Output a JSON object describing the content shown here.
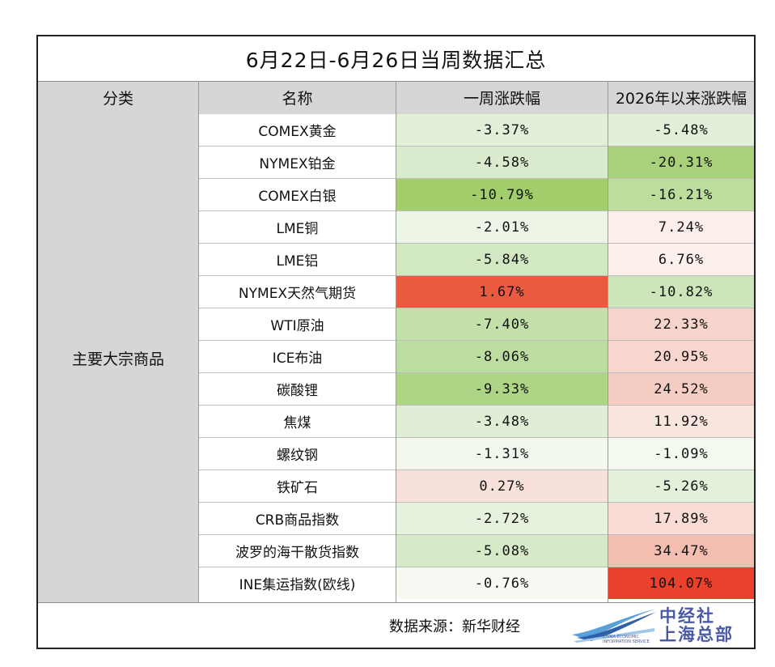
{
  "title": "6月22日-6月26日当周数据汇总",
  "headers": {
    "category": "分类",
    "name": "名称",
    "week": "一周涨跌幅",
    "ytd": "2026年以来涨跌幅"
  },
  "category_label": "主要大宗商品",
  "rows": [
    {
      "name": "COMEX黄金",
      "week": "-3.37%",
      "ytd": "-5.48%",
      "week_color": "#e2efd9",
      "ytd_color": "#e2efd9"
    },
    {
      "name": "NYMEX铂金",
      "week": "-4.58%",
      "ytd": "-20.31%",
      "week_color": "#d9ebcc",
      "ytd_color": "#a9d17c"
    },
    {
      "name": "COMEX白银",
      "week": "-10.79%",
      "ytd": "-16.21%",
      "week_color": "#a2cf6c",
      "ytd_color": "#bddd9c"
    },
    {
      "name": "LME铜",
      "week": "-2.01%",
      "ytd": "7.24%",
      "week_color": "#edf5e6",
      "ytd_color": "#fbeeeb"
    },
    {
      "name": "LME铝",
      "week": "-5.84%",
      "ytd": "6.76%",
      "week_color": "#d2e8c2",
      "ytd_color": "#fcf0ed"
    },
    {
      "name": "NYMEX天然气期货",
      "week": "1.67%",
      "ytd": "-10.82%",
      "week_color": "#ea5a3e",
      "ytd_color": "#cee5bb"
    },
    {
      "name": "WTI原油",
      "week": "-7.40%",
      "ytd": "22.33%",
      "week_color": "#c2e0a8",
      "ytd_color": "#f6d3cb"
    },
    {
      "name": "ICE布油",
      "week": "-8.06%",
      "ytd": "20.95%",
      "week_color": "#bcdca0",
      "ytd_color": "#f6d6ce"
    },
    {
      "name": "碳酸锂",
      "week": "-9.33%",
      "ytd": "24.52%",
      "week_color": "#aed485",
      "ytd_color": "#f5cdc3"
    },
    {
      "name": "焦煤",
      "week": "-3.48%",
      "ytd": "11.92%",
      "week_color": "#e0eed6",
      "ytd_color": "#f9e4de"
    },
    {
      "name": "螺纹钢",
      "week": "-1.31%",
      "ytd": "-1.09%",
      "week_color": "#f3f8ee",
      "ytd_color": "#f4f9ef"
    },
    {
      "name": "铁矿石",
      "week": "0.27%",
      "ytd": "-5.26%",
      "week_color": "#f9e1db",
      "ytd_color": "#e3f0da"
    },
    {
      "name": "CRB商品指数",
      "week": "-2.72%",
      "ytd": "17.89%",
      "week_color": "#e6f1de",
      "ytd_color": "#f8dcd5"
    },
    {
      "name": "波罗的海干散货指数",
      "week": "-5.08%",
      "ytd": "34.47%",
      "week_color": "#d6eac7",
      "ytd_color": "#f3bdb0"
    },
    {
      "name": "INE集运指数(欧线)",
      "week": "-0.76%",
      "ytd": "104.07%",
      "week_color": "#f6faf2",
      "ytd_color": "#e9412b"
    }
  ],
  "footer": {
    "source": "数据来源：新华财经"
  },
  "logo": {
    "line1": "中经社",
    "line2": "上海总部",
    "small": "CHINA ECONOMIC INFORMATION SERVICE"
  }
}
